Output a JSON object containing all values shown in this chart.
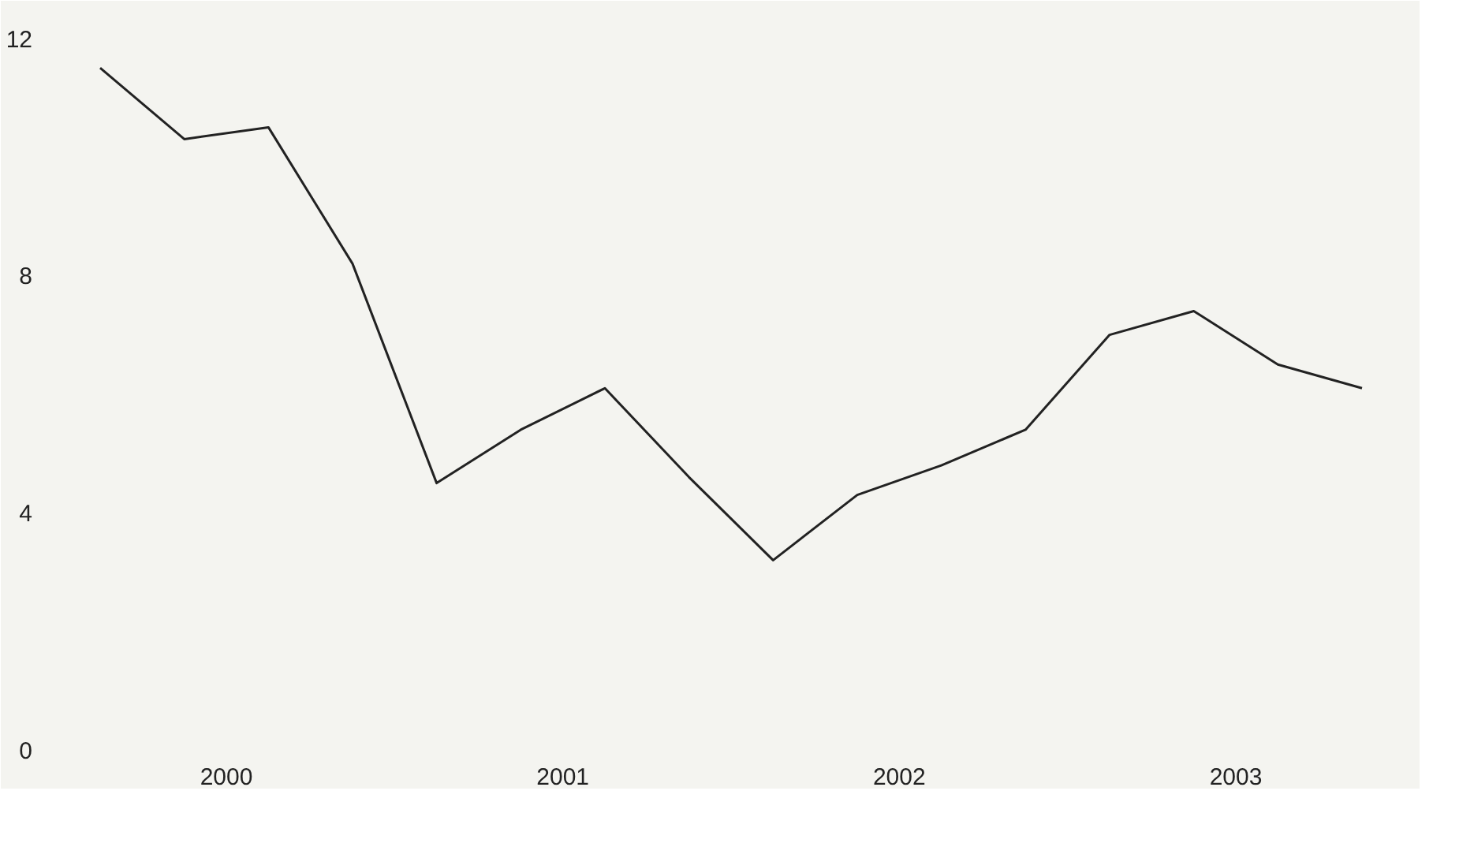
{
  "chart_data": {
    "type": "line",
    "x": [
      2000,
      2000.25,
      2000.5,
      2000.75,
      2001,
      2001.25,
      2001.5,
      2001.75,
      2002,
      2002.25,
      2002.5,
      2002.75,
      2003,
      2003.25,
      2003.5,
      2003.75
    ],
    "series": [
      {
        "color": "#222222",
        "values": [
          11.5,
          10.3,
          10.5,
          8.2,
          4.5,
          5.4,
          6.1,
          4.6,
          3.2,
          4.3,
          4.8,
          5.4,
          7.0,
          7.4,
          6.5,
          6.1
        ]
      }
    ],
    "xlim": [
      1999.85,
      2003.9
    ],
    "xticks": [
      {
        "value": 2000.375,
        "label": "2000"
      },
      {
        "value": 2001.375,
        "label": "2001"
      },
      {
        "value": 2002.375,
        "label": "2002"
      },
      {
        "value": 2003.375,
        "label": "2003"
      }
    ],
    "ylim": [
      0,
      12.5
    ],
    "yticks": [
      0,
      4,
      8,
      12
    ],
    "grid": false,
    "marker": "none",
    "line_style": "solid"
  }
}
